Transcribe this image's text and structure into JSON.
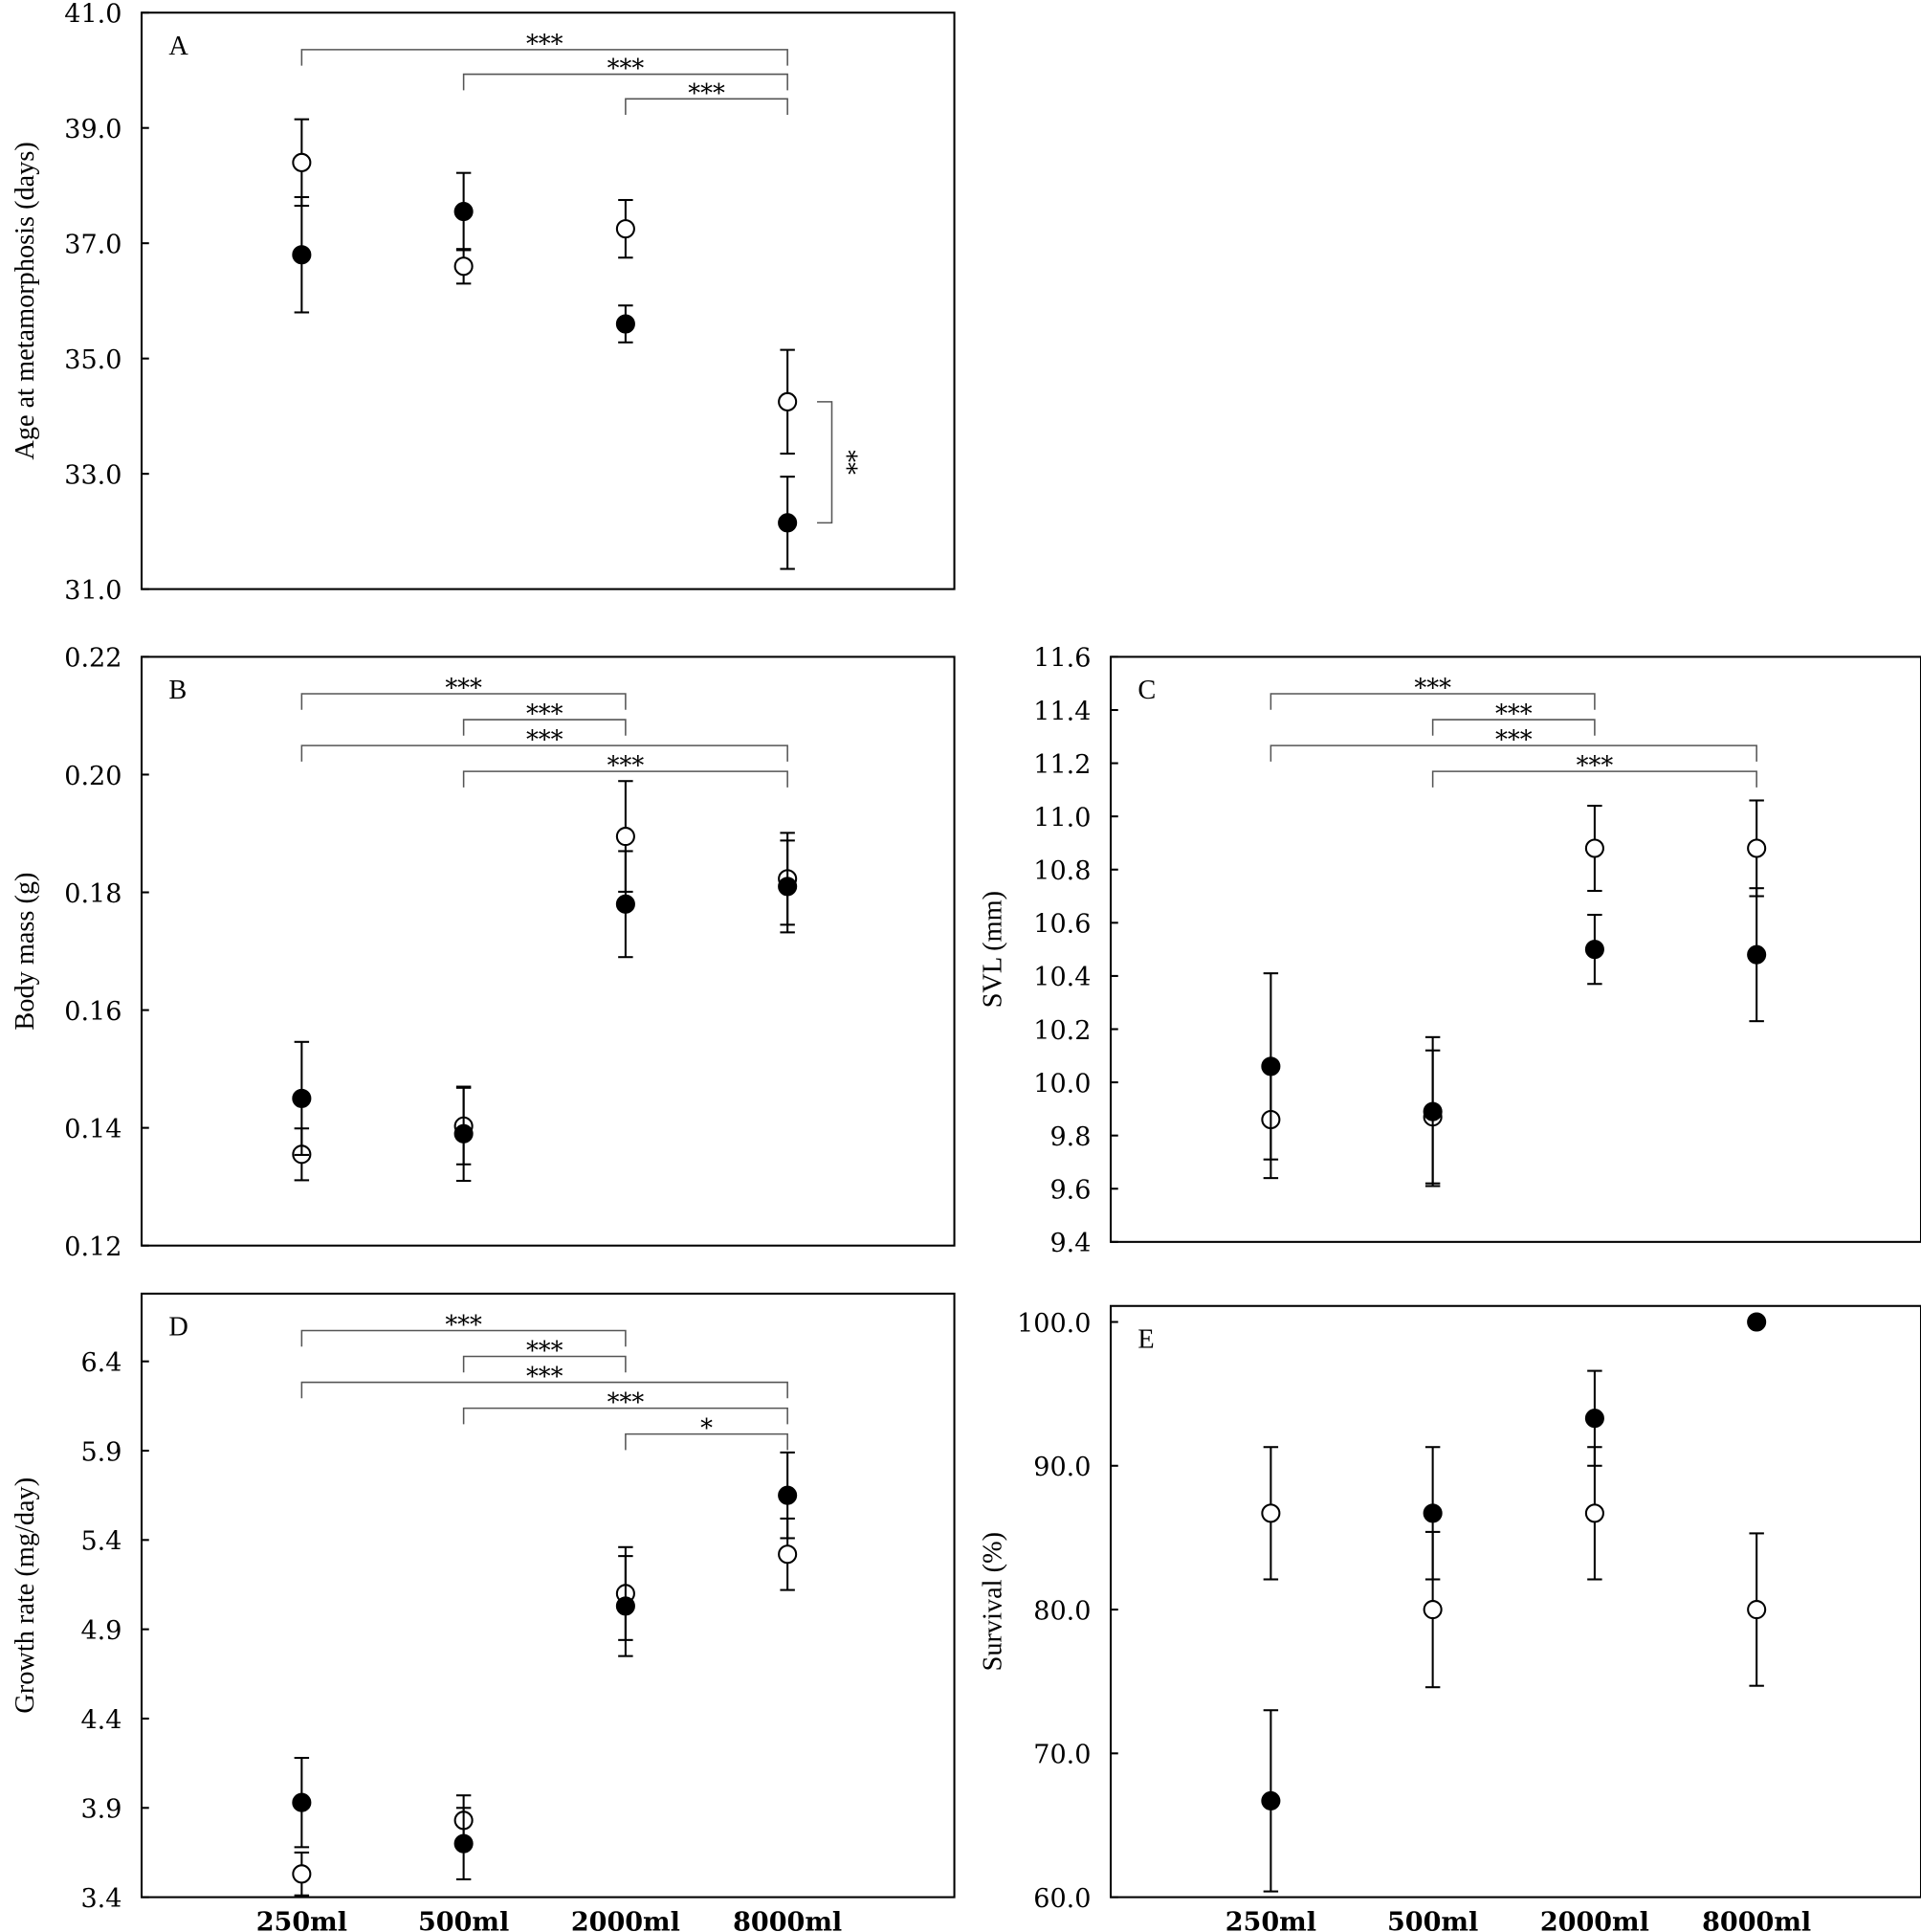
{
  "chart_data": [
    {
      "type": "scatter",
      "panel": "A",
      "ylabel": "Age at metamorphosis (days)",
      "categories": [
        "250ml",
        "500ml",
        "2000ml",
        "8000ml"
      ],
      "show_xticks": false,
      "ylim": [
        31,
        41
      ],
      "yticks": [
        31,
        33,
        35,
        37,
        39,
        41
      ],
      "ytick_decimals": 1,
      "series": [
        {
          "marker": "open",
          "mean": [
            38.4,
            36.6,
            37.25,
            34.25
          ],
          "err": [
            0.75,
            0.3,
            0.5,
            0.9
          ]
        },
        {
          "marker": "filled",
          "mean": [
            36.8,
            37.55,
            35.6,
            32.15
          ],
          "err": [
            1.0,
            0.67,
            0.32,
            0.8
          ]
        }
      ],
      "brackets": [
        {
          "from": 0,
          "to": 3,
          "label": "***"
        },
        {
          "from": 1,
          "to": 3,
          "label": "***"
        },
        {
          "from": 2,
          "to": 3,
          "label": "***"
        }
      ],
      "vertical_brackets": [
        {
          "group": 3,
          "label": "**"
        }
      ]
    },
    {
      "type": "scatter",
      "panel": "B",
      "ylabel": "Body mass (g)",
      "categories": [
        "250ml",
        "500ml",
        "2000ml",
        "8000ml"
      ],
      "show_xticks": false,
      "ylim": [
        0.12,
        0.22
      ],
      "yticks": [
        0.12,
        0.14,
        0.16,
        0.18,
        0.2,
        0.22
      ],
      "ytick_decimals": 2,
      "series": [
        {
          "marker": "open",
          "mean": [
            0.1355,
            0.1403,
            0.1895,
            0.1823
          ],
          "err": [
            0.0044,
            0.0065,
            0.0094,
            0.0078
          ]
        },
        {
          "marker": "filled",
          "mean": [
            0.145,
            0.139,
            0.178,
            0.181
          ],
          "err": [
            0.0096,
            0.008,
            0.009,
            0.0078
          ]
        }
      ],
      "brackets": [
        {
          "from": 0,
          "to": 2,
          "label": "***"
        },
        {
          "from": 1,
          "to": 2,
          "label": "***"
        },
        {
          "from": 0,
          "to": 3,
          "label": "***"
        },
        {
          "from": 1,
          "to": 3,
          "label": "***"
        }
      ],
      "vertical_brackets": []
    },
    {
      "type": "scatter",
      "panel": "C",
      "ylabel": "SVL (mm)",
      "categories": [
        "250ml",
        "500ml",
        "2000ml",
        "8000ml"
      ],
      "show_xticks": false,
      "ylim": [
        9.4,
        11.6
      ],
      "yticks": [
        9.4,
        9.6,
        9.8,
        10.0,
        10.2,
        10.4,
        10.6,
        10.8,
        11.0,
        11.2,
        11.4,
        11.6
      ],
      "ytick_decimals": 1,
      "series": [
        {
          "marker": "open",
          "mean": [
            9.86,
            9.87,
            10.88,
            10.88
          ],
          "err": [
            0.22,
            0.25,
            0.16,
            0.18
          ]
        },
        {
          "marker": "filled",
          "mean": [
            10.06,
            9.89,
            10.5,
            10.48
          ],
          "err": [
            0.35,
            0.28,
            0.13,
            0.25
          ]
        }
      ],
      "brackets": [
        {
          "from": 0,
          "to": 2,
          "label": "***"
        },
        {
          "from": 1,
          "to": 2,
          "label": "***"
        },
        {
          "from": 0,
          "to": 3,
          "label": "***"
        },
        {
          "from": 1,
          "to": 3,
          "label": "***"
        }
      ],
      "vertical_brackets": []
    },
    {
      "type": "scatter",
      "panel": "D",
      "ylabel": "Growth rate (mg/day)",
      "categories": [
        "250ml",
        "500ml",
        "2000ml",
        "8000ml"
      ],
      "show_xticks": true,
      "ylim": [
        3.4,
        6.78
      ],
      "yticks": [
        3.4,
        3.9,
        4.4,
        4.9,
        5.4,
        5.9,
        6.4
      ],
      "ytick_decimals": 1,
      "series": [
        {
          "marker": "open",
          "mean": [
            3.53,
            3.83,
            5.1,
            5.32
          ],
          "err": [
            0.12,
            0.14,
            0.26,
            0.2
          ]
        },
        {
          "marker": "filled",
          "mean": [
            3.93,
            3.7,
            5.03,
            5.65
          ],
          "err": [
            0.25,
            0.2,
            0.28,
            0.24
          ]
        }
      ],
      "brackets": [
        {
          "from": 0,
          "to": 2,
          "label": "***"
        },
        {
          "from": 1,
          "to": 2,
          "label": "***"
        },
        {
          "from": 0,
          "to": 3,
          "label": "***"
        },
        {
          "from": 1,
          "to": 3,
          "label": "***"
        },
        {
          "from": 2,
          "to": 3,
          "label": "*"
        }
      ],
      "vertical_brackets": []
    },
    {
      "type": "scatter",
      "panel": "E",
      "ylabel": "Survival (%)",
      "categories": [
        "250ml",
        "500ml",
        "2000ml",
        "8000ml"
      ],
      "show_xticks": true,
      "ylim": [
        60,
        101.1
      ],
      "yticks": [
        60,
        70,
        80,
        90,
        100
      ],
      "ytick_decimals": 1,
      "series": [
        {
          "marker": "open",
          "mean": [
            86.7,
            80.0,
            86.7,
            80.0
          ],
          "err": [
            4.6,
            5.4,
            4.6,
            5.3
          ]
        },
        {
          "marker": "filled",
          "mean": [
            66.7,
            86.7,
            93.3,
            100.0
          ],
          "err": [
            6.3,
            4.6,
            3.3,
            0
          ]
        }
      ],
      "brackets": [],
      "vertical_brackets": []
    }
  ]
}
